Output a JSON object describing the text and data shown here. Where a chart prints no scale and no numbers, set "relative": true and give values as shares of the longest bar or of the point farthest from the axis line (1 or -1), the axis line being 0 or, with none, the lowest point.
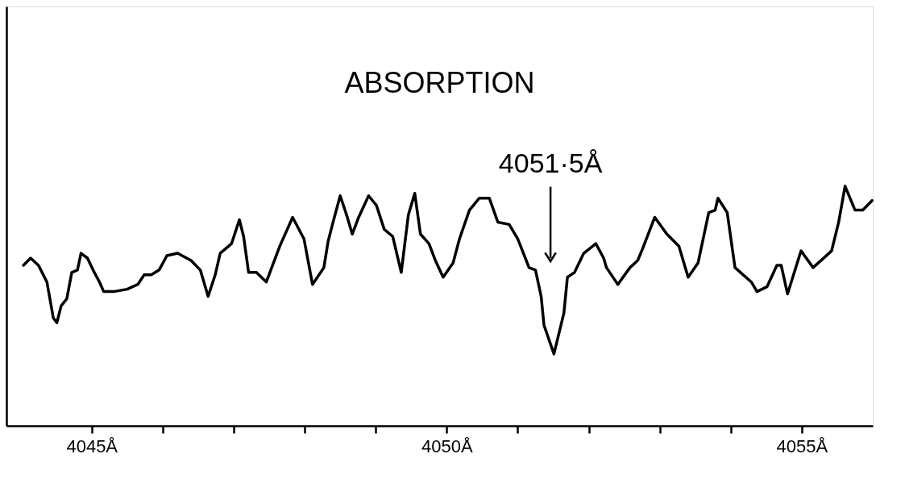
{
  "chart_data": {
    "type": "line",
    "title": "ABSORPTION",
    "relative": true,
    "xlim": [
      4043.8,
      4056.0
    ],
    "xticks": [
      {
        "value": 4045,
        "label": "4045Å"
      },
      {
        "value": 4046,
        "label": null
      },
      {
        "value": 4047,
        "label": null
      },
      {
        "value": 4048,
        "label": null
      },
      {
        "value": 4049,
        "label": null
      },
      {
        "value": 4050,
        "label": "4050Å"
      },
      {
        "value": 4051,
        "label": null
      },
      {
        "value": 4052,
        "label": null
      },
      {
        "value": 4053,
        "label": null
      },
      {
        "value": 4054,
        "label": null
      },
      {
        "value": 4055,
        "label": "4055Å"
      }
    ],
    "tick_labels": "x",
    "grid": false,
    "marker": "none",
    "line_style": "solid",
    "annotations": [
      "4051·5Å"
    ],
    "series": [
      {
        "color": "#000000",
        "x": [
          4044.04,
          4044.14,
          4044.25,
          4044.37,
          4044.46,
          4044.51,
          4044.57,
          4044.65,
          4044.72,
          4044.8,
          4044.85,
          4044.94,
          4045.02,
          4045.11,
          4045.17,
          4045.31,
          4045.5,
          4045.65,
          4045.74,
          4045.84,
          4045.95,
          4046.06,
          4046.21,
          4046.4,
          4046.53,
          4046.64,
          4046.74,
          4046.81,
          4046.97,
          4047.08,
          4047.14,
          4047.21,
          4047.32,
          4047.46,
          4047.65,
          4047.83,
          4047.99,
          4048.11,
          4048.27,
          4048.33,
          4048.4,
          4048.5,
          4048.59,
          4048.67,
          4048.76,
          4048.9,
          4049.01,
          4049.12,
          4049.24,
          4049.36,
          4049.46,
          4049.55,
          4049.63,
          4049.75,
          4049.84,
          4049.95,
          4050.09,
          4050.18,
          4050.32,
          4050.46,
          4050.6,
          4050.72,
          4050.88,
          4051.0,
          4051.16,
          4051.25,
          4051.33,
          4051.37,
          4051.51,
          4051.65,
          4051.7,
          4051.8,
          4051.93,
          4052.1,
          4052.21,
          4052.25,
          4052.41,
          4052.58,
          4052.69,
          4052.76,
          4052.93,
          4053.1,
          4053.27,
          4053.4,
          4053.54,
          4053.69,
          4053.78,
          4053.82,
          4053.95,
          4054.06,
          4054.29,
          4054.37,
          4054.51,
          4054.65,
          4054.71,
          4054.8,
          4054.99,
          4055.16,
          4055.42,
          4055.52,
          4055.61,
          4055.75,
          4055.86,
          4055.99
        ],
        "values": [
          0.67,
          0.7,
          0.67,
          0.6,
          0.45,
          0.43,
          0.5,
          0.53,
          0.64,
          0.65,
          0.72,
          0.7,
          0.65,
          0.6,
          0.56,
          0.56,
          0.57,
          0.59,
          0.63,
          0.63,
          0.65,
          0.71,
          0.72,
          0.69,
          0.65,
          0.54,
          0.63,
          0.72,
          0.76,
          0.86,
          0.79,
          0.64,
          0.64,
          0.6,
          0.75,
          0.87,
          0.78,
          0.59,
          0.66,
          0.77,
          0.85,
          0.96,
          0.88,
          0.8,
          0.87,
          0.96,
          0.92,
          0.82,
          0.79,
          0.64,
          0.88,
          0.97,
          0.8,
          0.76,
          0.69,
          0.62,
          0.68,
          0.78,
          0.9,
          0.95,
          0.95,
          0.85,
          0.84,
          0.78,
          0.66,
          0.65,
          0.54,
          0.42,
          0.3,
          0.47,
          0.62,
          0.64,
          0.72,
          0.76,
          0.7,
          0.66,
          0.59,
          0.66,
          0.69,
          0.74,
          0.87,
          0.8,
          0.75,
          0.62,
          0.68,
          0.89,
          0.9,
          0.95,
          0.89,
          0.66,
          0.6,
          0.56,
          0.58,
          0.67,
          0.67,
          0.55,
          0.73,
          0.66,
          0.73,
          0.85,
          1.0,
          0.9,
          0.9,
          0.94
        ]
      }
    ]
  }
}
